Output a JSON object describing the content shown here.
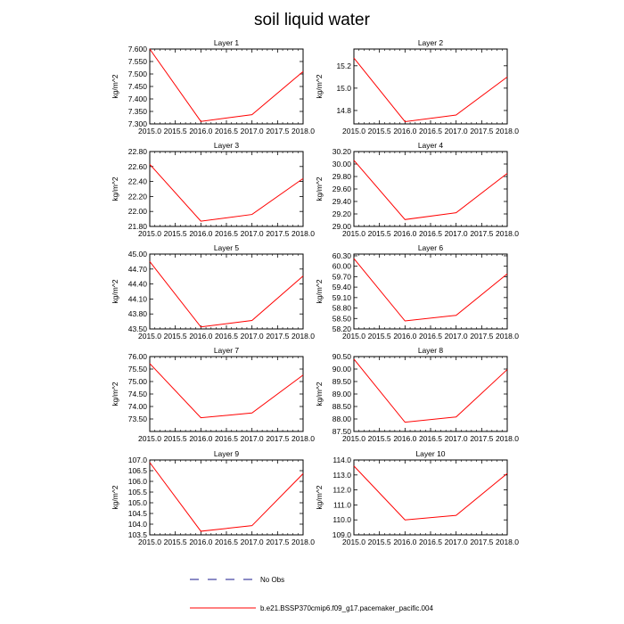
{
  "figure": {
    "title": "soil liquid water"
  },
  "chart_data": [
    {
      "type": "line",
      "title": "Layer 1",
      "ylabel": "kg/m^2",
      "x": [
        2015.0,
        2016.0,
        2017.0,
        2018.0
      ],
      "y": [
        7.6,
        7.31,
        7.337,
        7.51
      ],
      "xlim": [
        2015.0,
        2018.0
      ],
      "ylim": [
        7.3,
        7.6
      ],
      "xticks": [
        "2015.0",
        "2015.5",
        "2016.0",
        "2016.5",
        "2017.0",
        "2017.5",
        "2018.0"
      ],
      "yticks": [
        "7.300",
        "7.350",
        "7.400",
        "7.450",
        "7.500",
        "7.550",
        "7.600"
      ],
      "series": [
        {
          "values": [
            7.6,
            7.31,
            7.337,
            7.51
          ],
          "color": "#ff0000"
        }
      ]
    },
    {
      "type": "line",
      "title": "Layer 2",
      "ylabel": "kg/m^2",
      "x": [
        2015.0,
        2016.0,
        2017.0,
        2018.0
      ],
      "y": [
        15.27,
        14.7,
        14.76,
        15.1
      ],
      "xlim": [
        2015.0,
        2018.0
      ],
      "ylim": [
        14.68,
        15.35
      ],
      "xticks": [
        "2015.0",
        "2015.5",
        "2016.0",
        "2016.5",
        "2017.0",
        "2017.5",
        "2018.0"
      ],
      "yticks": [
        "14.8",
        "15.0",
        "15.2"
      ],
      "series": [
        {
          "values": [
            15.27,
            14.7,
            14.76,
            15.1
          ],
          "color": "#ff0000"
        }
      ]
    },
    {
      "type": "line",
      "title": "Layer 3",
      "ylabel": "kg/m^2",
      "x": [
        2015.0,
        2016.0,
        2017.0,
        2018.0
      ],
      "y": [
        22.63,
        21.87,
        21.96,
        22.44
      ],
      "xlim": [
        2015.0,
        2018.0
      ],
      "ylim": [
        21.8,
        22.8
      ],
      "xticks": [
        "2015.0",
        "2015.5",
        "2016.0",
        "2016.5",
        "2017.0",
        "2017.5",
        "2018.0"
      ],
      "yticks": [
        "21.80",
        "22.00",
        "22.20",
        "22.40",
        "22.60",
        "22.80"
      ],
      "series": [
        {
          "values": [
            22.63,
            21.87,
            21.96,
            22.44
          ],
          "color": "#ff0000"
        }
      ]
    },
    {
      "type": "line",
      "title": "Layer 4",
      "ylabel": "kg/m^2",
      "x": [
        2015.0,
        2016.0,
        2017.0,
        2018.0
      ],
      "y": [
        30.06,
        29.11,
        29.22,
        29.85
      ],
      "xlim": [
        2015.0,
        2018.0
      ],
      "ylim": [
        29.0,
        30.2
      ],
      "xticks": [
        "2015.0",
        "2015.5",
        "2016.0",
        "2016.5",
        "2017.0",
        "2017.5",
        "2018.0"
      ],
      "yticks": [
        "29.00",
        "29.20",
        "29.40",
        "29.60",
        "29.80",
        "30.00",
        "30.20"
      ],
      "series": [
        {
          "values": [
            30.06,
            29.11,
            29.22,
            29.85
          ],
          "color": "#ff0000"
        }
      ]
    },
    {
      "type": "line",
      "title": "Layer 5",
      "ylabel": "kg/m^2",
      "x": [
        2015.0,
        2016.0,
        2017.0,
        2018.0
      ],
      "y": [
        44.85,
        43.54,
        43.67,
        44.56
      ],
      "xlim": [
        2015.0,
        2018.0
      ],
      "ylim": [
        43.5,
        45.0
      ],
      "xticks": [
        "2015.0",
        "2015.5",
        "2016.0",
        "2016.5",
        "2017.0",
        "2017.5",
        "2018.0"
      ],
      "yticks": [
        "43.50",
        "43.80",
        "44.10",
        "44.40",
        "44.70",
        "45.00"
      ],
      "series": [
        {
          "values": [
            44.85,
            43.54,
            43.67,
            44.56
          ],
          "color": "#ff0000"
        }
      ]
    },
    {
      "type": "line",
      "title": "Layer 6",
      "ylabel": "kg/m^2",
      "x": [
        2015.0,
        2016.0,
        2017.0,
        2018.0
      ],
      "y": [
        60.22,
        58.43,
        58.59,
        59.78
      ],
      "xlim": [
        2015.0,
        2018.0
      ],
      "ylim": [
        58.2,
        60.35
      ],
      "xticks": [
        "2015.0",
        "2015.5",
        "2016.0",
        "2016.5",
        "2017.0",
        "2017.5",
        "2018.0"
      ],
      "yticks": [
        "58.20",
        "58.50",
        "58.80",
        "59.10",
        "59.40",
        "59.70",
        "60.00",
        "60.30"
      ],
      "series": [
        {
          "values": [
            60.22,
            58.43,
            58.59,
            59.78
          ],
          "color": "#ff0000"
        }
      ]
    },
    {
      "type": "line",
      "title": "Layer 7",
      "ylabel": "kg/m^2",
      "x": [
        2015.0,
        2016.0,
        2017.0,
        2018.0
      ],
      "y": [
        75.72,
        73.55,
        73.74,
        75.26
      ],
      "xlim": [
        2015.0,
        2018.0
      ],
      "ylim": [
        73.0,
        76.0
      ],
      "xticks": [
        "2015.0",
        "2015.5",
        "2016.0",
        "2016.5",
        "2017.0",
        "2017.5",
        "2018.0"
      ],
      "yticks": [
        "73.50",
        "74.00",
        "74.50",
        "75.00",
        "75.50",
        "76.00"
      ],
      "series": [
        {
          "values": [
            75.72,
            73.55,
            73.74,
            75.26
          ],
          "color": "#ff0000"
        }
      ]
    },
    {
      "type": "line",
      "title": "Layer 8",
      "ylabel": "kg/m^2",
      "x": [
        2015.0,
        2016.0,
        2017.0,
        2018.0
      ],
      "y": [
        90.4,
        87.87,
        88.08,
        89.98
      ],
      "xlim": [
        2015.0,
        2018.0
      ],
      "ylim": [
        87.5,
        90.5
      ],
      "xticks": [
        "2015.0",
        "2015.5",
        "2016.0",
        "2016.5",
        "2017.0",
        "2017.5",
        "2018.0"
      ],
      "yticks": [
        "87.50",
        "88.00",
        "88.50",
        "89.00",
        "89.50",
        "90.00",
        "90.50"
      ],
      "series": [
        {
          "values": [
            90.4,
            87.87,
            88.08,
            89.98
          ],
          "color": "#ff0000"
        }
      ]
    },
    {
      "type": "line",
      "title": "Layer 9",
      "ylabel": "kg/m^2",
      "x": [
        2015.0,
        2016.0,
        2017.0,
        2018.0
      ],
      "y": [
        106.88,
        103.67,
        103.93,
        106.36
      ],
      "xlim": [
        2015.0,
        2018.0
      ],
      "ylim": [
        103.5,
        107.0
      ],
      "xticks": [
        "2015.0",
        "2015.5",
        "2016.0",
        "2016.5",
        "2017.0",
        "2017.5",
        "2018.0"
      ],
      "yticks": [
        "103.5",
        "104.0",
        "104.5",
        "105.0",
        "105.5",
        "106.0",
        "106.5",
        "107.0"
      ],
      "series": [
        {
          "values": [
            106.88,
            103.67,
            103.93,
            106.36
          ],
          "color": "#ff0000"
        }
      ]
    },
    {
      "type": "line",
      "title": "Layer 10",
      "ylabel": "kg/m^2",
      "x": [
        2015.0,
        2016.0,
        2017.0,
        2018.0
      ],
      "y": [
        113.6,
        110.0,
        110.3,
        113.1
      ],
      "xlim": [
        2015.0,
        2018.0
      ],
      "ylim": [
        109.0,
        114.0
      ],
      "xticks": [
        "2015.0",
        "2015.5",
        "2016.0",
        "2016.5",
        "2017.0",
        "2017.5",
        "2018.0"
      ],
      "yticks": [
        "109.0",
        "110.0",
        "111.0",
        "112.0",
        "113.0",
        "114.0"
      ],
      "series": [
        {
          "values": [
            113.6,
            110.0,
            110.3,
            113.1
          ],
          "color": "#ff0000"
        }
      ]
    }
  ],
  "legend": [
    {
      "label": "No Obs",
      "color": "#1a1a8c",
      "style": "dashed"
    },
    {
      "label": "b.e21.BSSP370cmip6.f09_g17.pacemaker_pacific.004",
      "color": "#ff0000",
      "style": "solid"
    }
  ]
}
